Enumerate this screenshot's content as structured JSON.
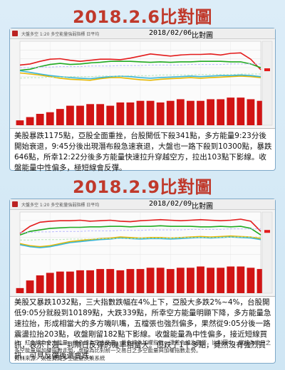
{
  "sections": [
    {
      "title": "2018.2.6比對圖",
      "header": {
        "label": "大盤多空 1:20 多空能量強弱指標 日平均",
        "date": "2018/02/06",
        "name": "比對圖"
      },
      "caption": "美股暴跌1175點，亞股全面重挫，台股開低下殺341點，多方能量9:23分後開始衰退，9:45分後出現潛布殺急速衰退，大盤也一路下殺到10300點，暴跌646點，所幸12:22分後多方能量快速拉升穿越空方，拉出103點下影線。收盤能量中性偏多，極短線會反彈。"
    },
    {
      "title": "2018.2.9比對圖",
      "header": {
        "label": "大盤多空 1:20 多空能量強弱指標 日平均",
        "date": "2018/02/09",
        "name": "比對圖"
      },
      "caption": "美股又暴跌1032點，三大指數跌幅在4%上下，亞股大多跌2%~4%，台股開低9:05分就殺到10189點，大跌339點，所幸空方能量明顯下降，多方能量急速拉抬，形成相當大的多方嘰叭嘴，五檔張也強烈偏多，果然從9:05分後一路震盪拉抬203點，收盤剛留182點下影線。收盤能量為中性偏多，接近短線買訊，表示下週一到隔日反彈的機率相當大。但跌了1千多點，竟然沒有強烈買訊，可見反彈後還會跌。"
    }
  ],
  "notes": {
    "legend_text": "註：紅色線為多方能量，綠色線為空方能量，黃色線為加權指數，淺藍色線為期貨，比對圖中，實線為當日之多空能量與加權指數走勢，虛線為比對前一交易日之多空能量與加權指數走勢。",
    "source": "資料來源：太極寶藏多空能量決策系統"
  },
  "chart_data": [
    {
      "type": "line",
      "date": "2018/02/06",
      "note": "intraday, approximate",
      "x": [
        0,
        1,
        2,
        3,
        4,
        5,
        6,
        7,
        8,
        9,
        10,
        11,
        12,
        13,
        14,
        15,
        16,
        17,
        18,
        19,
        20,
        21,
        22,
        23,
        24
      ],
      "series": [
        {
          "color": "#e31b1b",
          "values": [
            55,
            57,
            62,
            66,
            67,
            64,
            62,
            64,
            66,
            66,
            65,
            68,
            72,
            76,
            74,
            72,
            74,
            75,
            75,
            76,
            74,
            77,
            78,
            66,
            46
          ]
        },
        {
          "color": "#1faa1f",
          "values": [
            45,
            47,
            52,
            56,
            58,
            56,
            57,
            59,
            60,
            62,
            62,
            62,
            61,
            60,
            61,
            60,
            61,
            61,
            62,
            62,
            62,
            61,
            61,
            57,
            50
          ]
        },
        {
          "color": "#e6b800",
          "values": [
            40,
            38,
            36,
            33,
            30,
            28,
            27,
            26,
            29,
            31,
            31,
            29,
            27,
            26,
            28,
            29,
            30,
            31,
            30,
            31,
            32,
            33,
            34,
            33,
            31
          ]
        },
        {
          "color": "#3ab6d6",
          "values": [
            44,
            41,
            38,
            35,
            33,
            31,
            30,
            29,
            31,
            33,
            34,
            33,
            31,
            30,
            31,
            32,
            33,
            34,
            33,
            34,
            35,
            35,
            36,
            35,
            33
          ]
        },
        {
          "color": "#b9b9ff",
          "dashed": true,
          "values": [
            50,
            50,
            51,
            51,
            52,
            52,
            52,
            53,
            53,
            53,
            54,
            54,
            54,
            55,
            55,
            55,
            55,
            56,
            56,
            56,
            56,
            57,
            57,
            57,
            57
          ]
        },
        {
          "color": "#b9e6b9",
          "dashed": true,
          "values": [
            30,
            31,
            31,
            32,
            32,
            33,
            33,
            33,
            34,
            34,
            34,
            35,
            35,
            35,
            36,
            36,
            36,
            36,
            37,
            37,
            37,
            37,
            38,
            38,
            38
          ]
        }
      ],
      "bars": {
        "color": "#d11414",
        "values": [
          3,
          5,
          7,
          8,
          10,
          12,
          12,
          13,
          13,
          12,
          14,
          14,
          15,
          15,
          14,
          15,
          16,
          15,
          15,
          16,
          16,
          17,
          17,
          16,
          15
        ]
      },
      "ylim": [
        0,
        100
      ]
    },
    {
      "type": "line",
      "date": "2018/02/09",
      "note": "intraday, approximate",
      "x": [
        0,
        1,
        2,
        3,
        4,
        5,
        6,
        7,
        8,
        9,
        10,
        11,
        12,
        13,
        14,
        15,
        16,
        17,
        18,
        19,
        20,
        21,
        22,
        23,
        24
      ],
      "series": [
        {
          "color": "#e31b1b",
          "values": [
            58,
            72,
            80,
            82,
            83,
            83,
            84,
            82,
            83,
            84,
            82,
            81,
            83,
            84,
            85,
            84,
            83,
            84,
            85,
            84,
            83,
            84,
            86,
            82,
            62
          ]
        },
        {
          "color": "#1faa1f",
          "values": [
            55,
            62,
            65,
            68,
            69,
            70,
            70,
            71,
            71,
            72,
            72,
            71,
            72,
            72,
            73,
            72,
            72,
            72,
            71,
            71,
            72,
            71,
            72,
            68,
            55
          ]
        },
        {
          "color": "#e6b800",
          "values": [
            38,
            34,
            32,
            34,
            38,
            42,
            44,
            46,
            48,
            49,
            51,
            50,
            49,
            50,
            50,
            49,
            50,
            51,
            52,
            51,
            52,
            53,
            52,
            51,
            48
          ]
        },
        {
          "color": "#3ab6d6",
          "values": [
            36,
            32,
            30,
            32,
            36,
            40,
            42,
            44,
            46,
            47,
            49,
            48,
            47,
            48,
            48,
            47,
            48,
            49,
            50,
            49,
            50,
            51,
            50,
            49,
            46
          ]
        },
        {
          "color": "#b9b9ff",
          "dashed": true,
          "values": [
            60,
            60,
            61,
            61,
            62,
            62,
            62,
            63,
            63,
            63,
            64,
            64,
            64,
            65,
            65,
            65,
            65,
            66,
            66,
            66,
            66,
            67,
            67,
            67,
            67
          ]
        },
        {
          "color": "#b9e6b9",
          "dashed": true,
          "values": [
            45,
            45,
            46,
            46,
            46,
            47,
            47,
            47,
            48,
            48,
            48,
            48,
            49,
            49,
            49,
            49,
            50,
            50,
            50,
            50,
            50,
            51,
            51,
            51,
            51
          ]
        }
      ],
      "bars": {
        "color": "#d11414",
        "values": [
          4,
          10,
          14,
          16,
          17,
          17,
          18,
          18,
          19,
          19,
          18,
          19,
          19,
          20,
          20,
          19,
          20,
          20,
          21,
          20,
          20,
          21,
          21,
          20,
          19
        ]
      },
      "ylim": [
        0,
        100
      ]
    }
  ]
}
